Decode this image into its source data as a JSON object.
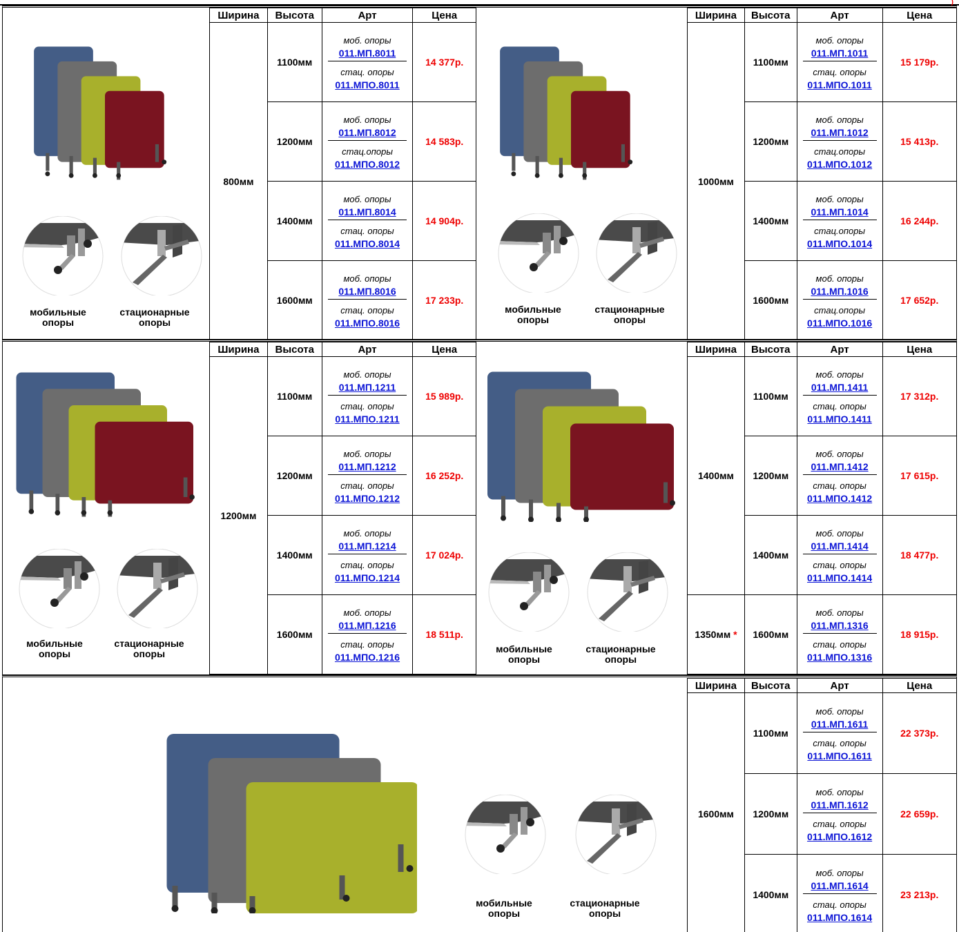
{
  "headers": {
    "width": "Ширина",
    "height": "Высота",
    "art": "Арт",
    "price": "Цена"
  },
  "labels": {
    "mob": "моб. опоры",
    "sta": "стац. опоры",
    "mobile": "мобильные опоры",
    "stationary": "стационарные опоры"
  },
  "colors": {
    "blue": "#445d86",
    "gray": "#6d6d6d",
    "olive": "#a8b02c",
    "red": "#7a1420",
    "code": "#0b14d6",
    "price": "#e00000"
  },
  "star": "*",
  "blocks": [
    {
      "left": {
        "width": "800мм",
        "rows": [
          {
            "h": "1100мм",
            "mob_lbl": "моб. опоры",
            "mob": "011.МП.8011",
            "sta_lbl": "стац. опоры",
            "sta": "011.МПО.8011",
            "price": "14 377р."
          },
          {
            "h": "1200мм",
            "mob_lbl": "моб. опоры",
            "mob": "011.МП.8012",
            "sta_lbl": "стац.опоры",
            "sta": "011.МПО.8012",
            "price": "14 583р."
          },
          {
            "h": "1400мм",
            "mob_lbl": "моб.  опоры",
            "mob": "011.МП.8014",
            "sta_lbl": "стац. опоры",
            "sta": "011.МПО.8014",
            "price": "14 904р."
          },
          {
            "h": "1600мм",
            "mob_lbl": "моб. опоры",
            "mob": "011.МП.8016",
            "sta_lbl": "стац. опоры",
            "sta": "011.МПО.8016",
            "price": "17 233р."
          }
        ]
      },
      "right": {
        "width": "1000мм",
        "rows": [
          {
            "h": "1100мм",
            "mob_lbl": "моб. опоры",
            "mob": "011.МП.1011",
            "sta_lbl": "стац. опоры",
            "sta": "011.МПО.1011",
            "price": "15 179р."
          },
          {
            "h": "1200мм",
            "mob_lbl": "моб. опоры",
            "mob": "011.МП.1012",
            "sta_lbl": "стац.опоры",
            "sta": "011.МПО.1012",
            "price": "15 413р."
          },
          {
            "h": "1400мм",
            "mob_lbl": "моб. опоры",
            "mob": "011.МП.1014",
            "sta_lbl": "стац.опоры",
            "sta": "011.МПО.1014",
            "price": "16 244р."
          },
          {
            "h": "1600мм",
            "mob_lbl": "моб. опоры",
            "mob": "011.МП.1016",
            "sta_lbl": "стац.опоры",
            "sta": "011.МПО.1016",
            "price": "17 652р."
          }
        ]
      }
    },
    {
      "left": {
        "width": "1200мм",
        "rows": [
          {
            "h": "1100мм",
            "mob_lbl": "моб. опоры",
            "mob": "011.МП.1211",
            "sta_lbl": "стац. опоры",
            "sta": "011.МПО.1211",
            "price": "15 989р."
          },
          {
            "h": "1200мм",
            "mob_lbl": "моб. опоры",
            "mob": "011.МП.1212",
            "sta_lbl": "стац. опоры",
            "sta": "011.МПО.1212",
            "price": "16 252р."
          },
          {
            "h": "1400мм",
            "mob_lbl": "моб. опоры",
            "mob": "011.МП.1214",
            "sta_lbl": "стац. опоры",
            "sta": "011.МПО.1214",
            "price": "17 024р."
          },
          {
            "h": "1600мм",
            "mob_lbl": "моб. опоры",
            "mob": "011.МП.1216",
            "sta_lbl": "стац. опоры",
            "sta": "011.МПО.1216",
            "price": "18 511р."
          }
        ]
      },
      "right": {
        "width": "1400мм",
        "width2": "1350мм",
        "rows": [
          {
            "h": "1100мм",
            "mob_lbl": "моб. опоры",
            "mob": "011.МП.1411",
            "sta_lbl": "стац. опоры",
            "sta": "011.МПО.1411",
            "price": "17 312р."
          },
          {
            "h": "1200мм",
            "mob_lbl": "моб. опоры",
            "mob": "011.МП.1412",
            "sta_lbl": "стац. опоры",
            "sta": "011.МПО.1412",
            "price": "17 615р."
          },
          {
            "h": "1400мм",
            "mob_lbl": "моб. опоры",
            "mob": "011.МП.1414",
            "sta_lbl": "стац. опоры",
            "sta": "011.МПО.1414",
            "price": "18 477р."
          },
          {
            "h": "1600мм",
            "mob_lbl": "моб. опоры",
            "mob": "011.МП.1316",
            "sta_lbl": "стац. опоры",
            "sta": "011.МПО.1316",
            "price": "18 915р."
          }
        ]
      }
    },
    {
      "right": {
        "width": "1600мм",
        "rows": [
          {
            "h": "1100мм",
            "mob_lbl": "моб. опоры",
            "mob": "011.МП.1611",
            "sta_lbl": "стац. опоры",
            "sta": "011.МПО.1611",
            "price": "22 373р."
          },
          {
            "h": "1200мм",
            "mob_lbl": "моб. опоры",
            "mob": "011.МП.1612",
            "sta_lbl": "стац. опоры",
            "sta": "011.МПО.1612",
            "price": "22 659р."
          },
          {
            "h": "1400мм",
            "mob_lbl": "моб. опоры",
            "mob": "011.МП.1614",
            "sta_lbl": "стац. опоры",
            "sta": "011.МПО.1614",
            "price": "23 213р."
          }
        ]
      }
    }
  ]
}
